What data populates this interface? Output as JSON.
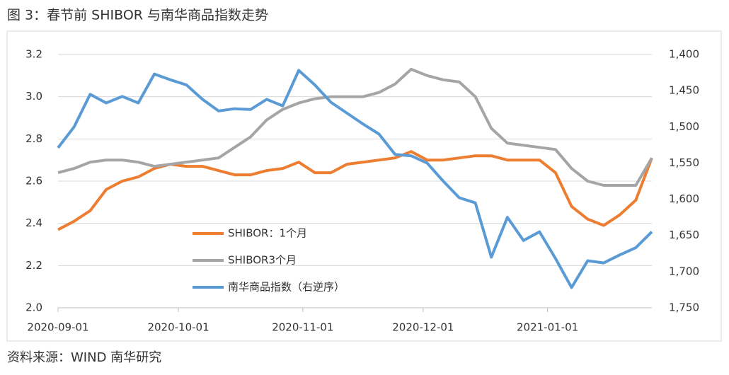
{
  "title": "图 3：春节前 SHIBOR 与南华商品指数走势",
  "source": "资料来源：WIND  南华研究",
  "chart_data": {
    "type": "line",
    "x": [
      "2020-09-01",
      "2020-09-05",
      "2020-09-09",
      "2020-09-13",
      "2020-09-17",
      "2020-09-21",
      "2020-09-25",
      "2020-09-29",
      "2020-10-03",
      "2020-10-07",
      "2020-10-11",
      "2020-10-15",
      "2020-10-19",
      "2020-10-23",
      "2020-10-27",
      "2020-10-31",
      "2020-11-04",
      "2020-11-08",
      "2020-11-12",
      "2020-11-16",
      "2020-11-20",
      "2020-11-24",
      "2020-11-28",
      "2020-12-02",
      "2020-12-06",
      "2020-12-10",
      "2020-12-14",
      "2020-12-18",
      "2020-12-22",
      "2020-12-26",
      "2020-12-30",
      "2021-01-03",
      "2021-01-07",
      "2021-01-11",
      "2021-01-15",
      "2021-01-19",
      "2021-01-23",
      "2021-01-27"
    ],
    "xlim": [
      "2020-09-01",
      "2021-01-27"
    ],
    "xticks": [
      "2020-09-01",
      "2020-10-01",
      "2020-11-01",
      "2020-12-01",
      "2021-01-01"
    ],
    "ylim": [
      2.0,
      3.2
    ],
    "yticks": [
      {
        "value": 2.0,
        "label": "2.0"
      },
      2.2,
      2.4,
      2.6,
      2.8,
      {
        "value": 3.0,
        "label": "3.0"
      },
      3.2
    ],
    "y2lim": [
      1750,
      1400
    ],
    "y2ticks": [
      {
        "value": 1400,
        "label": "1,400"
      },
      {
        "value": 1450,
        "label": "1,450"
      },
      {
        "value": 1500,
        "label": "1,500"
      },
      {
        "value": 1550,
        "label": "1,550"
      },
      {
        "value": 1600,
        "label": "1,600"
      },
      {
        "value": 1650,
        "label": "1,650"
      },
      {
        "value": 1700,
        "label": "1,700"
      },
      {
        "value": 1750,
        "label": "1,750"
      }
    ],
    "legend": "center",
    "series": [
      {
        "name": "SHIBOR：1个月",
        "color": "#ed7d31",
        "values": [
          2.37,
          2.41,
          2.46,
          2.56,
          2.6,
          2.62,
          2.66,
          2.68,
          2.67,
          2.67,
          2.65,
          2.63,
          2.63,
          2.65,
          2.66,
          2.69,
          2.64,
          2.64,
          2.68,
          2.69,
          2.7,
          2.71,
          2.74,
          2.7,
          2.7,
          2.71,
          2.72,
          2.72,
          2.7,
          2.7,
          2.7,
          2.64,
          2.48,
          2.42,
          2.39,
          2.44,
          2.51,
          2.71
        ]
      },
      {
        "name": "SHIBOR3个月",
        "color": "#a5a5a5",
        "values": [
          2.64,
          2.66,
          2.69,
          2.7,
          2.7,
          2.69,
          2.67,
          2.68,
          2.69,
          2.7,
          2.71,
          2.76,
          2.81,
          2.89,
          2.94,
          2.97,
          2.99,
          3.0,
          3.0,
          3.0,
          3.02,
          3.06,
          3.13,
          3.1,
          3.08,
          3.07,
          3.0,
          2.85,
          2.78,
          2.77,
          2.76,
          2.75,
          2.66,
          2.6,
          2.58,
          2.58,
          2.58,
          2.71
        ]
      },
      {
        "name": "南华商品指数（右逆序）",
        "color": "#5b9bd5",
        "axis": "y2",
        "values": [
          1529,
          1500,
          1455,
          1467,
          1458,
          1467,
          1427,
          1435,
          1442,
          1462,
          1478,
          1475,
          1476,
          1462,
          1471,
          1422,
          1442,
          1466,
          1481,
          1496,
          1510,
          1538,
          1540,
          1550,
          1575,
          1598,
          1605,
          1680,
          1625,
          1657,
          1645,
          1682,
          1722,
          1685,
          1688,
          1677,
          1667,
          1645
        ]
      }
    ]
  }
}
